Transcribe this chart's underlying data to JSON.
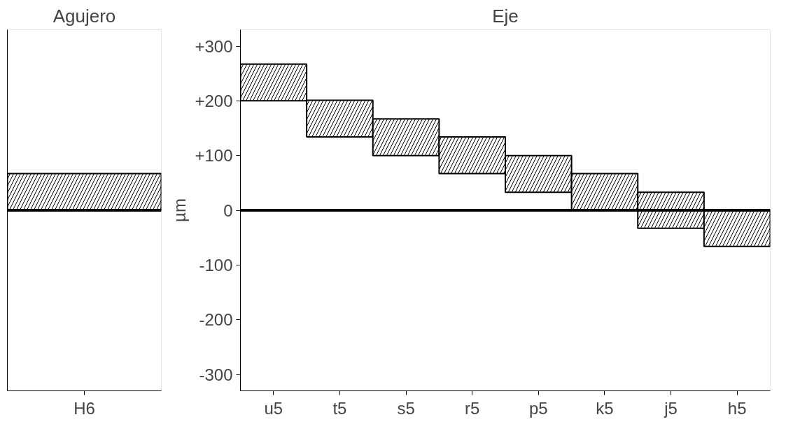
{
  "chart_data": [
    {
      "type": "bar",
      "title": "Agujero",
      "categories": [
        "H6"
      ],
      "base": [
        0
      ],
      "values": [
        67
      ],
      "color": "#000000",
      "ylim": [
        -330,
        330
      ],
      "yticks": [
        300,
        200,
        100,
        0,
        -100,
        -200,
        -300
      ],
      "tick_labels": "x",
      "ref_lines": [
        {
          "axis": "y",
          "value": 0
        }
      ]
    },
    {
      "type": "bar",
      "title": "Eje",
      "ylabel": "µm",
      "categories": [
        "u5",
        "t5",
        "s5",
        "r5",
        "p5",
        "k5",
        "j5",
        "h5"
      ],
      "base": [
        200,
        134,
        100,
        67,
        33,
        0,
        -33,
        -66
      ],
      "values": [
        67,
        67,
        67,
        67,
        67,
        67,
        66,
        66
      ],
      "color": "#000000",
      "ylim": [
        -330,
        330
      ],
      "yticks": [
        {
          "value": 300,
          "label": "+300"
        },
        {
          "value": 200,
          "label": "+200"
        },
        {
          "value": 100,
          "label": "+100"
        },
        0,
        -100,
        -200,
        -300
      ],
      "ref_lines": [
        {
          "axis": "y",
          "value": 0
        }
      ]
    }
  ]
}
